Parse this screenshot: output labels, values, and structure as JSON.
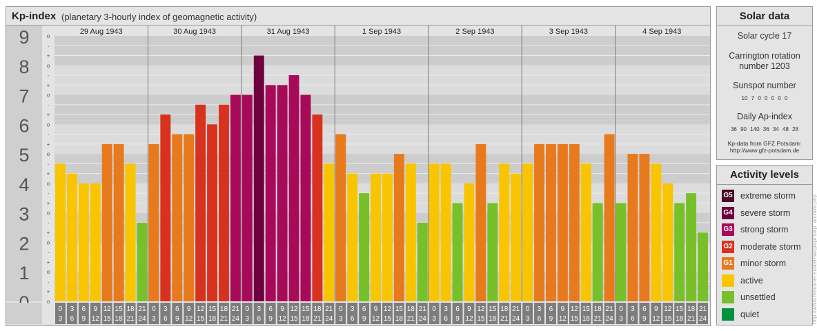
{
  "header": {
    "title": "Kp-index",
    "subtitle": "(planetary 3-hourly index of geomagnetic activity)"
  },
  "chart_data": {
    "type": "bar",
    "title": "Kp-index",
    "subtitle": "(planetary 3-hourly index of geomagnetic activity)",
    "ylim": [
      0,
      9
    ],
    "y_ticks": [
      "0",
      "1",
      "2",
      "3",
      "4",
      "5",
      "6",
      "7",
      "8",
      "9"
    ],
    "minor_ticks": [
      "o",
      "+",
      "-"
    ],
    "days": [
      "29 Aug 1943",
      "30 Aug 1943",
      "31 Aug 1943",
      "1 Sep 1943",
      "2 Sep 1943",
      "3 Sep 1943",
      "4 Sep 1943"
    ],
    "hour_labels": [
      [
        "0",
        "3"
      ],
      [
        "3",
        "6"
      ],
      [
        "6",
        "9"
      ],
      [
        "9",
        "12"
      ],
      [
        "12",
        "15"
      ],
      [
        "15",
        "18"
      ],
      [
        "18",
        "21"
      ],
      [
        "21",
        "24"
      ]
    ],
    "values": [
      4.667,
      4.333,
      4.0,
      4.0,
      5.333,
      5.333,
      4.667,
      2.667,
      5.333,
      6.333,
      5.667,
      5.667,
      6.667,
      6.0,
      6.667,
      7.0,
      7.0,
      8.333,
      7.333,
      7.333,
      7.667,
      7.0,
      6.333,
      4.667,
      5.667,
      4.333,
      3.667,
      4.333,
      4.333,
      5.0,
      4.667,
      2.667,
      4.667,
      4.667,
      3.333,
      4.0,
      5.333,
      3.333,
      4.667,
      4.333,
      4.667,
      5.333,
      5.333,
      5.333,
      5.333,
      4.667,
      3.333,
      5.667,
      3.333,
      5.0,
      5.0,
      4.667,
      4.0,
      3.333,
      3.667,
      2.333
    ]
  },
  "solar": {
    "title": "Solar data",
    "cycle": "Solar cycle 17",
    "carrington_1": "Carrington rotation",
    "carrington_2": "number 1203",
    "sunspot_label": "Sunspot number",
    "sunspot_values": "10 7 0 0 0 0 0",
    "ap_label": "Daily Ap-index",
    "ap_values": "36 90 140 36 34 48 28",
    "source_1": "Kp-data from GFZ Potsdam:",
    "source_2": "http://www.gfz-potsdam.de"
  },
  "activity": {
    "title": "Activity levels",
    "levels": [
      {
        "code": "G5",
        "label": "extreme storm",
        "color": "#4a0a2a"
      },
      {
        "code": "G4",
        "label": "severe storm",
        "color": "#6e0040"
      },
      {
        "code": "G3",
        "label": "strong storm",
        "color": "#a80a5a"
      },
      {
        "code": "G2",
        "label": "moderate storm",
        "color": "#d8321e"
      },
      {
        "code": "G1",
        "label": "minor storm",
        "color": "#e87a1e"
      },
      {
        "code": "",
        "label": "active",
        "color": "#f8c500"
      },
      {
        "code": "",
        "label": "unsettled",
        "color": "#78c02a"
      },
      {
        "code": "",
        "label": "quiet",
        "color": "#00913e"
      }
    ]
  },
  "watermark": "http://www.theusner.eu/kernal/graphs/kp_archive.php"
}
